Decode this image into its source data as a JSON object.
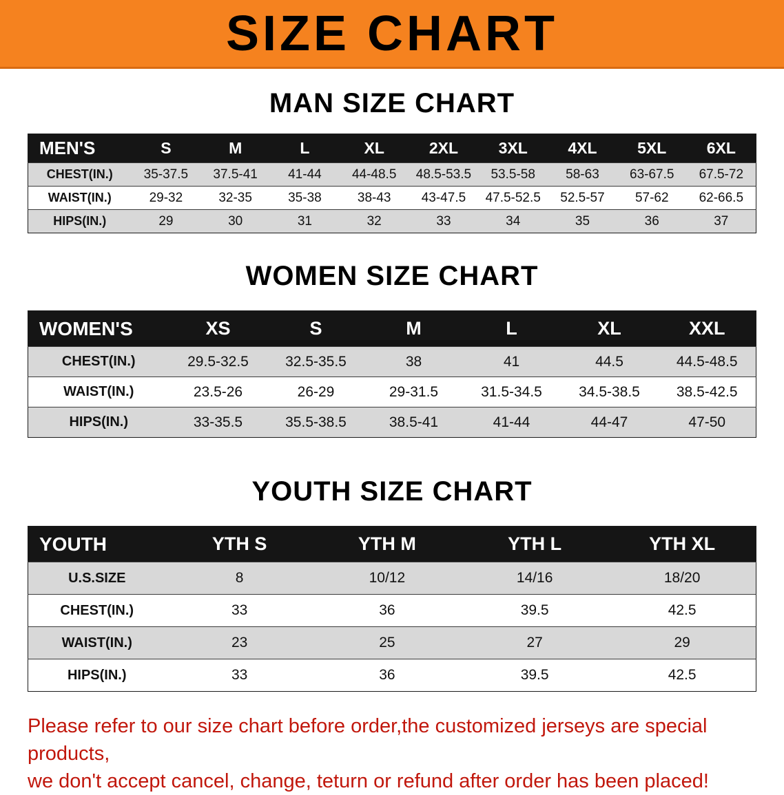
{
  "colors": {
    "banner_orange": "#f5821f",
    "banner_edge": "#d96b10",
    "header_black": "#151515",
    "row_gray": "#d8d8d8",
    "notice_red": "#c1170c"
  },
  "banner": {
    "title": "SIZE CHART"
  },
  "sections": [
    {
      "heading": "MAN SIZE CHART",
      "table": {
        "header": [
          "MEN'S",
          "S",
          "M",
          "L",
          "XL",
          "2XL",
          "3XL",
          "4XL",
          "5XL",
          "6XL"
        ],
        "rows": [
          [
            "CHEST(IN.)",
            "35-37.5",
            "37.5-41",
            "41-44",
            "44-48.5",
            "48.5-53.5",
            "53.5-58",
            "58-63",
            "63-67.5",
            "67.5-72"
          ],
          [
            "WAIST(IN.)",
            "29-32",
            "32-35",
            "35-38",
            "38-43",
            "43-47.5",
            "47.5-52.5",
            "52.5-57",
            "57-62",
            "62-66.5"
          ],
          [
            "HIPS(IN.)",
            "29",
            "30",
            "31",
            "32",
            "33",
            "34",
            "35",
            "36",
            "37"
          ]
        ]
      }
    },
    {
      "heading": "WOMEN SIZE CHART",
      "table": {
        "header": [
          "WOMEN'S",
          "XS",
          "S",
          "M",
          "L",
          "XL",
          "XXL"
        ],
        "rows": [
          [
            "CHEST(IN.)",
            "29.5-32.5",
            "32.5-35.5",
            "38",
            "41",
            "44.5",
            "44.5-48.5"
          ],
          [
            "WAIST(IN.)",
            "23.5-26",
            "26-29",
            "29-31.5",
            "31.5-34.5",
            "34.5-38.5",
            "38.5-42.5"
          ],
          [
            "HIPS(IN.)",
            "33-35.5",
            "35.5-38.5",
            "38.5-41",
            "41-44",
            "44-47",
            "47-50"
          ]
        ]
      }
    },
    {
      "heading": "YOUTH SIZE CHART",
      "table": {
        "header": [
          "YOUTH",
          "YTH S",
          "YTH M",
          "YTH L",
          "YTH XL"
        ],
        "rows": [
          [
            "U.S.SIZE",
            "8",
            "10/12",
            "14/16",
            "18/20"
          ],
          [
            "CHEST(IN.)",
            "33",
            "36",
            "39.5",
            "42.5"
          ],
          [
            "WAIST(IN.)",
            "23",
            "25",
            "27",
            "29"
          ],
          [
            "HIPS(IN.)",
            "33",
            "36",
            "39.5",
            "42.5"
          ]
        ]
      }
    }
  ],
  "footer": {
    "line1": "Please refer to our size chart before order,the customized jerseys are special products,",
    "line2": "we don't accept cancel, change, teturn or refund after order has been placed!"
  }
}
